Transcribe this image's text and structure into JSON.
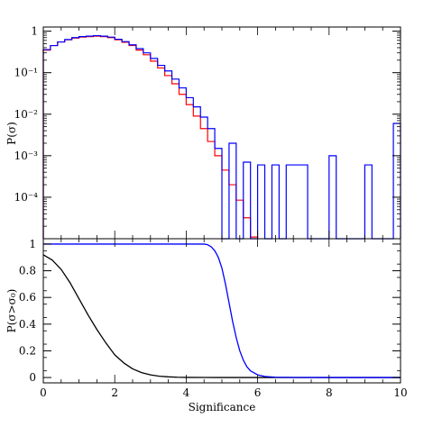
{
  "chart_data": [
    {
      "type": "histogram",
      "panel": "top",
      "ylabel": "P(σ)",
      "yscale": "log",
      "xlim": [
        0,
        10
      ],
      "ylim_log10": [
        -5,
        0.1
      ],
      "ytick_labels": [
        "1",
        "10⁻¹",
        "10⁻²",
        "10⁻³",
        "10⁻⁴"
      ],
      "ytick_values": [
        1,
        0.1,
        0.01,
        0.001,
        0.0001
      ],
      "bin_edges": [
        0,
        0.2,
        0.4,
        0.6,
        0.8,
        1.0,
        1.2,
        1.4,
        1.6,
        1.8,
        2.0,
        2.2,
        2.4,
        2.6,
        2.8,
        3.0,
        3.2,
        3.4,
        3.6,
        3.8,
        4.0,
        4.2,
        4.4,
        4.6,
        4.8,
        5.0,
        5.2,
        5.4,
        5.6,
        5.8,
        6.0,
        6.2,
        6.4,
        6.6,
        6.8,
        7.0,
        7.2,
        7.4,
        7.6,
        7.8,
        8.0,
        8.2,
        8.4,
        8.6,
        8.8,
        9.0,
        9.2,
        9.4,
        9.6,
        9.8,
        10.0
      ],
      "series": [
        {
          "color": "#ff0000",
          "values": [
            0.35,
            0.45,
            0.55,
            0.62,
            0.68,
            0.72,
            0.74,
            0.76,
            0.74,
            0.7,
            0.62,
            0.54,
            0.45,
            0.35,
            0.27,
            0.19,
            0.13,
            0.085,
            0.054,
            0.03,
            0.017,
            0.009,
            0.0045,
            0.0022,
            0.001,
            0.00045,
            0.0002,
            8.5e-05,
            3.2e-05,
            1.1e-05
          ]
        },
        {
          "color": "#0000ff",
          "values": [
            0.36,
            0.45,
            0.55,
            0.63,
            0.7,
            0.74,
            0.76,
            0.78,
            0.76,
            0.72,
            0.64,
            0.56,
            0.47,
            0.38,
            0.3,
            0.22,
            0.15,
            0.11,
            0.07,
            0.043,
            0.025,
            0.015,
            0.0085,
            0.0045,
            0.0015,
            1e-05,
            0.002,
            1e-05,
            0.0007,
            1e-05,
            0.0006,
            1e-05,
            0.0006,
            1e-05,
            0.0006,
            0.0006,
            0.0006,
            1e-05,
            1e-05,
            1e-05,
            0.001,
            1e-05,
            1e-05,
            1e-05,
            1e-05,
            0.0006,
            1e-05,
            1e-05,
            1e-05,
            0.006
          ]
        }
      ]
    },
    {
      "type": "line",
      "panel": "bottom",
      "xlabel": "Significance",
      "ylabel": "P(σ>σ₀)",
      "xlim": [
        0,
        10
      ],
      "ylim": [
        -0.04,
        1.04
      ],
      "xtick_labels": [
        "0",
        "2",
        "4",
        "6",
        "8",
        "10"
      ],
      "xtick_values": [
        0,
        2,
        4,
        6,
        8,
        10
      ],
      "ytick_labels": [
        "0",
        "0.2",
        "0.4",
        "0.6",
        "0.8",
        "1"
      ],
      "ytick_values": [
        0,
        0.2,
        0.4,
        0.6,
        0.8,
        1
      ],
      "series": [
        {
          "color": "#000000",
          "x": [
            0,
            0.25,
            0.5,
            0.75,
            1.0,
            1.25,
            1.5,
            1.75,
            2.0,
            2.25,
            2.5,
            2.75,
            3.0,
            3.25,
            3.5,
            3.75,
            4.0,
            4.5,
            5.0,
            6.0,
            10.0
          ],
          "y": [
            0.92,
            0.88,
            0.81,
            0.71,
            0.59,
            0.47,
            0.36,
            0.26,
            0.17,
            0.11,
            0.065,
            0.037,
            0.02,
            0.01,
            0.005,
            0.002,
            0.001,
            0.0003,
            0.0001,
            0.0,
            0.0
          ]
        },
        {
          "color": "#0000ff",
          "x": [
            0,
            1,
            2,
            3,
            4,
            4.5,
            4.6,
            4.7,
            4.8,
            4.9,
            5.0,
            5.1,
            5.2,
            5.3,
            5.4,
            5.5,
            5.6,
            5.7,
            5.8,
            6.0,
            6.2,
            6.5,
            7.0,
            8.0,
            9.0,
            10.0
          ],
          "y": [
            1.0,
            1.0,
            1.0,
            1.0,
            1.0,
            1.0,
            0.995,
            0.98,
            0.95,
            0.9,
            0.82,
            0.7,
            0.56,
            0.42,
            0.3,
            0.2,
            0.13,
            0.08,
            0.05,
            0.02,
            0.008,
            0.002,
            0.0005,
            0.0,
            0.0,
            0.0
          ]
        }
      ]
    }
  ]
}
